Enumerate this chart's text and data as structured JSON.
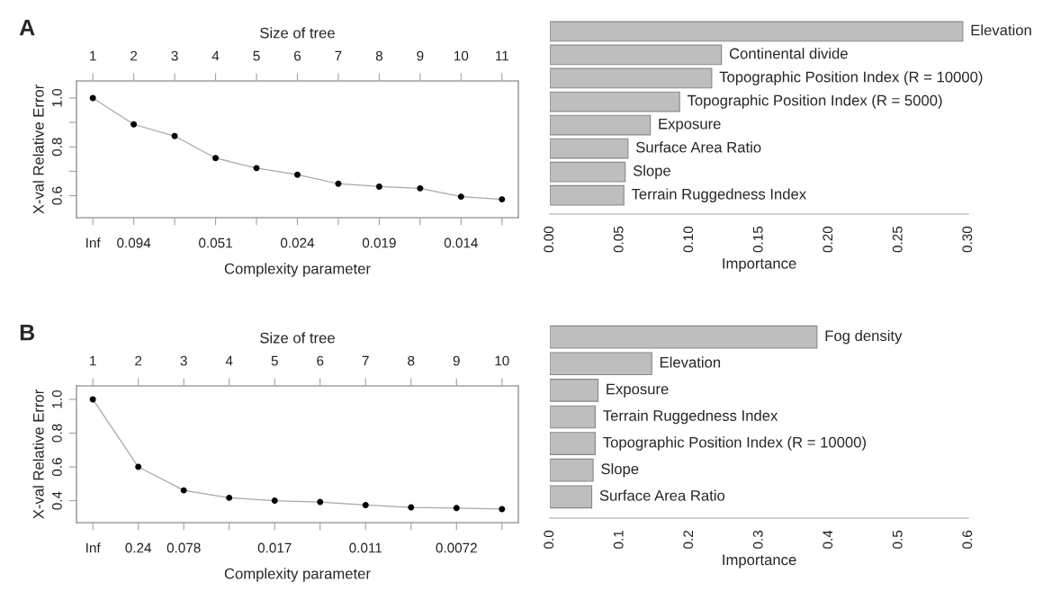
{
  "chart_data": [
    {
      "type": "line",
      "title": "A",
      "x2label": "Size of tree",
      "xlabel": "Complexity parameter",
      "ylabel": "X-val Relative Error",
      "categories": [
        "Inf",
        "0.094",
        null,
        "0.051",
        null,
        "0.024",
        null,
        "0.019",
        null,
        "0.014",
        null
      ],
      "series": [
        {
          "color": "#000000",
          "values": [
            1.0,
            0.892,
            0.844,
            0.754,
            0.713,
            0.686,
            0.649,
            0.637,
            0.63,
            0.596,
            0.585
          ]
        }
      ],
      "marker": "circle",
      "ylim": [
        0.51,
        1.07
      ],
      "x2lim": [
        0.6,
        11.4
      ],
      "x2ticks": [
        1,
        2,
        3,
        4,
        5,
        6,
        7,
        8,
        9,
        10,
        11
      ],
      "yticks": [
        {
          "value": 0.6,
          "label": "0.6"
        },
        {
          "value": 0.7,
          "label": null
        },
        {
          "value": 0.8,
          "label": "0.8"
        },
        {
          "value": 0.9,
          "label": null
        },
        {
          "value": 1.0,
          "label": "1.0"
        }
      ]
    },
    {
      "type": "bar",
      "orientation": "horizontal",
      "xlabel": "Importance",
      "color": "#bebebe",
      "categories": [
        "Elevation",
        "Continental divide",
        "Topographic Position Index (R = 10000)",
        "Topographic Position Index (R = 5000)",
        "Exposure",
        "Surface Area Ratio",
        "Slope",
        "Terrain Ruggedness Index"
      ],
      "values": [
        0.296,
        0.123,
        0.116,
        0.093,
        0.072,
        0.056,
        0.054,
        0.053
      ],
      "xlim": [
        0,
        0.3
      ],
      "xticks": [
        {
          "value": 0,
          "label": "0.00"
        },
        {
          "value": 0.05,
          "label": "0.05"
        },
        {
          "value": 0.1,
          "label": "0.10"
        },
        {
          "value": 0.15,
          "label": "0.15"
        },
        {
          "value": 0.2,
          "label": "0.20"
        },
        {
          "value": 0.25,
          "label": "0.25"
        },
        {
          "value": 0.3,
          "label": "0.30"
        }
      ]
    },
    {
      "type": "line",
      "title": "B",
      "x2label": "Size of tree",
      "xlabel": "Complexity parameter",
      "ylabel": "X-val Relative Error",
      "categories": [
        "Inf",
        "0.24",
        "0.078",
        null,
        "0.017",
        null,
        "0.011",
        null,
        "0.0072",
        null
      ],
      "series": [
        {
          "color": "#000000",
          "values": [
            1.0,
            0.6,
            0.461,
            0.417,
            0.4,
            0.392,
            0.374,
            0.36,
            0.356,
            0.35
          ]
        }
      ],
      "marker": "circle",
      "ylim": [
        0.27,
        1.08
      ],
      "x2lim": [
        0.64,
        10.36
      ],
      "x2ticks": [
        1,
        2,
        3,
        4,
        5,
        6,
        7,
        8,
        9,
        10
      ],
      "yticks": [
        {
          "value": 0.4,
          "label": "0.4"
        },
        {
          "value": 0.6,
          "label": "0.6"
        },
        {
          "value": 0.8,
          "label": "0.8"
        },
        {
          "value": 1.0,
          "label": "1.0"
        }
      ]
    },
    {
      "type": "bar",
      "orientation": "horizontal",
      "xlabel": "Importance",
      "color": "#bebebe",
      "categories": [
        "Fog density",
        "Elevation",
        "Exposure",
        "Terrain Ruggedness Index",
        "Topographic Position Index (R = 10000)",
        "Slope",
        "Surface Area Ratio"
      ],
      "values": [
        0.383,
        0.146,
        0.069,
        0.065,
        0.065,
        0.062,
        0.06
      ],
      "xlim": [
        0,
        0.6
      ],
      "xticks": [
        {
          "value": 0,
          "label": "0.0"
        },
        {
          "value": 0.1,
          "label": "0.1"
        },
        {
          "value": 0.2,
          "label": "0.2"
        },
        {
          "value": 0.3,
          "label": "0.3"
        },
        {
          "value": 0.4,
          "label": "0.4"
        },
        {
          "value": 0.5,
          "label": "0.5"
        },
        {
          "value": 0.6,
          "label": "0.6"
        }
      ]
    }
  ]
}
